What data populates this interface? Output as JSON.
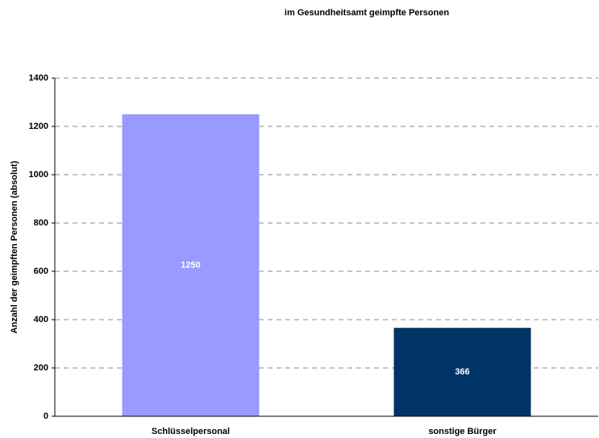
{
  "chart_data": {
    "type": "bar",
    "title": "im Gesundheitsamt geimpfte Personen",
    "ylabel": "Anzahl der geimpften Personen (absolut)",
    "categories": [
      "Schlüsselpersonal",
      "sonstige Bürger"
    ],
    "values": [
      1250,
      366
    ],
    "colors": [
      "#9999ff",
      "#003366"
    ],
    "ylim": [
      0,
      1400
    ],
    "yticks": [
      0,
      200,
      400,
      600,
      800,
      1000,
      1200,
      1400
    ],
    "grid": true
  }
}
